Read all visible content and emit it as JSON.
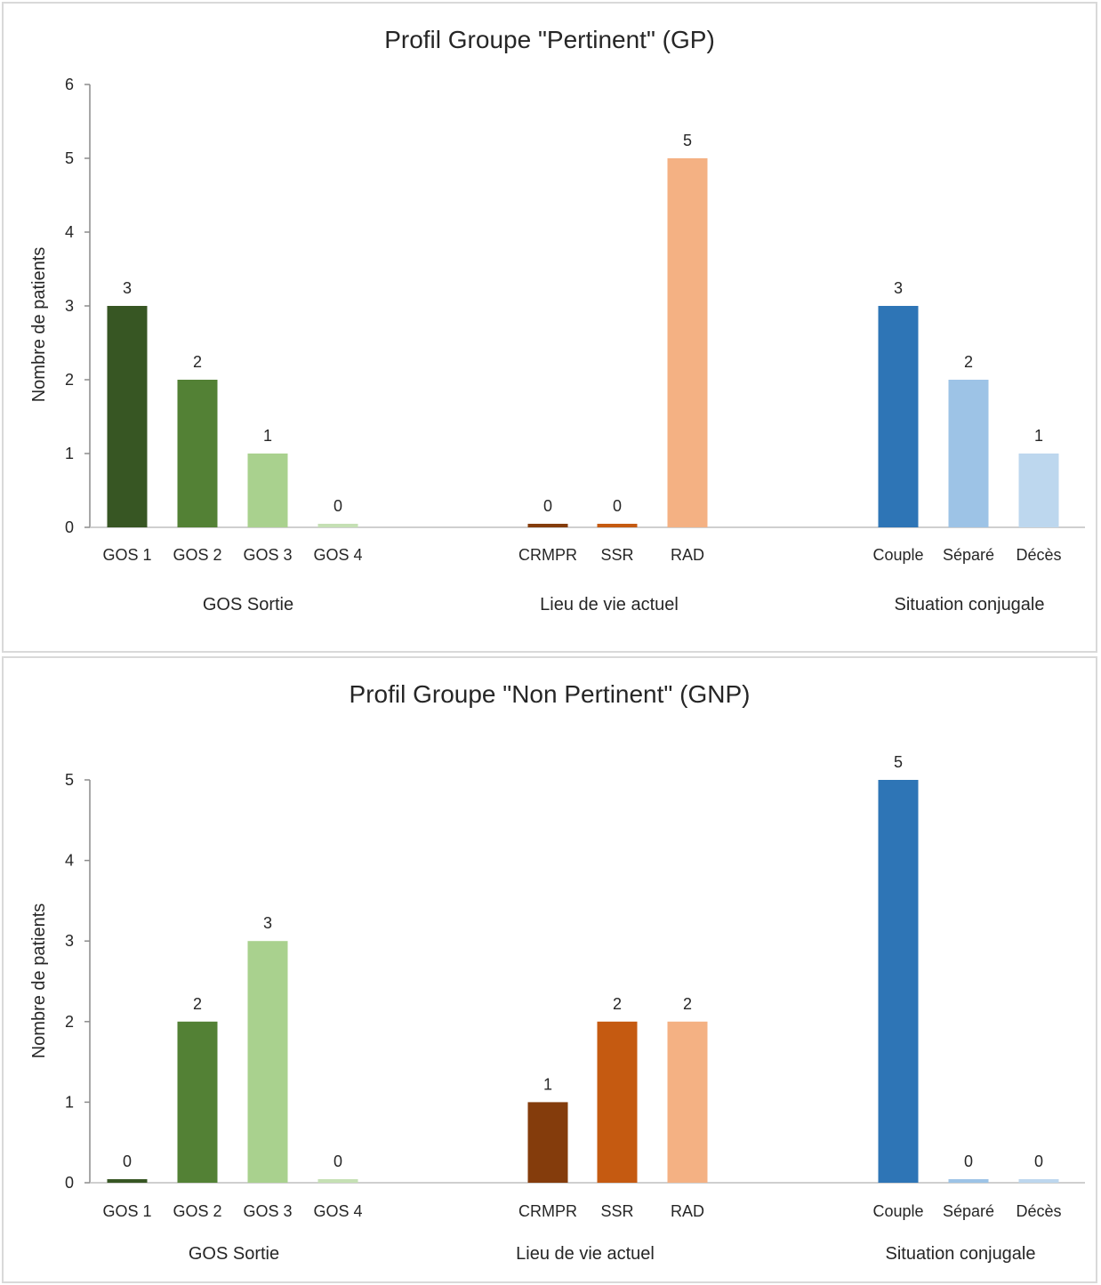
{
  "chart_data": [
    {
      "type": "bar",
      "title": "Profil Groupe \"Pertinent\" (GP)",
      "ylabel": "Nombre de patients",
      "ylim": [
        0,
        6
      ],
      "yticks": [
        0,
        1,
        2,
        3,
        4,
        5,
        6
      ],
      "grid": false,
      "groups": [
        {
          "name": "GOS Sortie",
          "categories": [
            "GOS 1",
            "GOS 2",
            "GOS 3",
            "GOS 4"
          ],
          "values": [
            3,
            2,
            1,
            0
          ],
          "colors": [
            "#375623",
            "#538135",
            "#a9d18e",
            "#c5e0b4"
          ]
        },
        {
          "name": "Lieu de vie actuel",
          "categories": [
            "CRMPR",
            "SSR",
            "RAD"
          ],
          "values": [
            0,
            0,
            5
          ],
          "colors": [
            "#843c0c",
            "#c55a11",
            "#f4b183"
          ]
        },
        {
          "name": "Situation conjugale",
          "categories": [
            "Couple",
            "Séparé",
            "Décès"
          ],
          "values": [
            3,
            2,
            1
          ],
          "colors": [
            "#2e75b6",
            "#9dc3e6",
            "#bdd7ee"
          ]
        }
      ]
    },
    {
      "type": "bar",
      "title": "Profil Groupe \"Non Pertinent\" (GNP)",
      "ylabel": "Nombre de patients",
      "ylim": [
        0,
        5
      ],
      "yticks": [
        0,
        1,
        2,
        3,
        4,
        5
      ],
      "grid": false,
      "groups": [
        {
          "name": "GOS Sortie",
          "categories": [
            "GOS 1",
            "GOS 2",
            "GOS 3",
            "GOS 4"
          ],
          "values": [
            0,
            2,
            3,
            0
          ],
          "colors": [
            "#375623",
            "#538135",
            "#a9d18e",
            "#c5e0b4"
          ]
        },
        {
          "name": "Lieu de vie actuel",
          "categories": [
            "CRMPR",
            "SSR",
            "RAD"
          ],
          "values": [
            1,
            2,
            2
          ],
          "colors": [
            "#843c0c",
            "#c55a11",
            "#f4b183"
          ]
        },
        {
          "name": "Situation conjugale",
          "categories": [
            "Couple",
            "Séparé",
            "Décès"
          ],
          "values": [
            5,
            0,
            0
          ],
          "colors": [
            "#2e75b6",
            "#9dc3e6",
            "#bdd7ee"
          ]
        }
      ]
    }
  ]
}
